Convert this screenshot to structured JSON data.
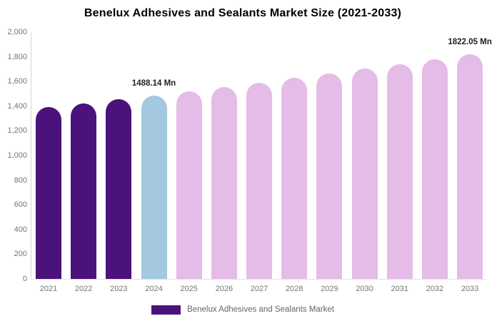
{
  "chart": {
    "title": "Benelux Adhesives and Sealants Market Size (2021-2033)",
    "legend_label": "Benelux Adhesives and Sealants Market",
    "unit_suffix": "Mn"
  },
  "colors": {
    "historical": "#4a127a",
    "base_year": "#a3c8e0",
    "forecast": "#e5bbe8",
    "title_text": "#000000",
    "data_label_text": "#222222",
    "axis_text": "#757575",
    "legend_text": "#666666",
    "axis_line": "#d6d6d6"
  },
  "chart_data": {
    "type": "bar",
    "title": "Benelux Adhesives and Sealants Market Size (2021-2033)",
    "xlabel": "",
    "ylabel": "",
    "ylim": [
      0,
      2000
    ],
    "ytick_step": 200,
    "yticks": [
      "0",
      "200",
      "400",
      "600",
      "800",
      "1,000",
      "1,200",
      "1,400",
      "1,600",
      "1,800",
      "2,000"
    ],
    "grid": false,
    "legend_position": "bottom",
    "categories": [
      "2021",
      "2022",
      "2023",
      "2024",
      "2025",
      "2026",
      "2027",
      "2028",
      "2029",
      "2030",
      "2031",
      "2032",
      "2033"
    ],
    "series": [
      {
        "name": "Benelux Adhesives and Sealants Market",
        "values": [
          1391.03,
          1422.67,
          1455.04,
          1488.14,
          1522.0,
          1556.62,
          1592.03,
          1628.24,
          1665.28,
          1703.16,
          1741.9,
          1781.52,
          1822.05
        ],
        "bar_roles": [
          "historical",
          "historical",
          "historical",
          "base_year",
          "forecast",
          "forecast",
          "forecast",
          "forecast",
          "forecast",
          "forecast",
          "forecast",
          "forecast",
          "forecast"
        ],
        "point_labels": {
          "2024": "1488.14 Mn",
          "2033": "1822.05 Mn"
        }
      }
    ]
  }
}
